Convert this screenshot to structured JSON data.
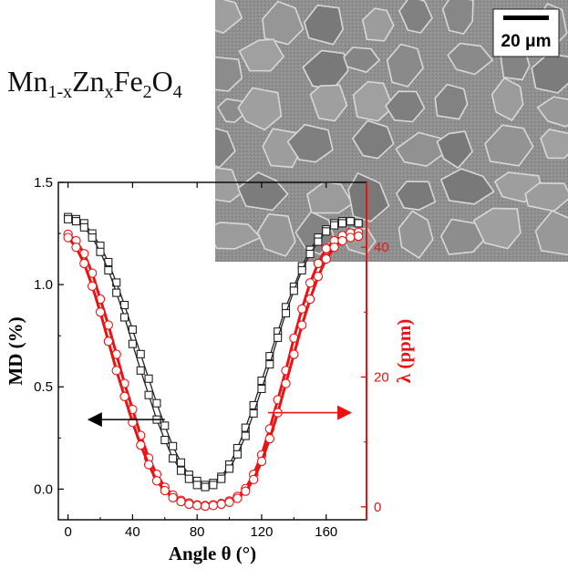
{
  "figure": {
    "formula": {
      "base1": "Mn",
      "sub1": "1-x",
      "base2": "Zn",
      "sub2": "x",
      "base3": "Fe",
      "sub3": "2",
      "base4": "O",
      "sub4": "4"
    },
    "micrograph": {
      "scale_bar_label": "20 μm"
    }
  },
  "chart_data": {
    "type": "scatter",
    "title": "",
    "xlabel": "Angle θ (°)",
    "ylabel": "MD (%)",
    "y2label": "λ (ppm)",
    "xlim": [
      -6,
      185
    ],
    "ylim": [
      -0.15,
      1.5
    ],
    "y2lim": [
      -2,
      50
    ],
    "xticks": [
      0,
      40,
      80,
      120,
      160
    ],
    "yticks": [
      0.0,
      0.5,
      1.0,
      1.5
    ],
    "yticks_labels": [
      "0.0",
      "0.5",
      "1.0",
      "1.5"
    ],
    "y2ticks": [
      0,
      20,
      40
    ],
    "colors": {
      "md": "#222222",
      "lambda": "#ee1111"
    },
    "series": [
      {
        "axis": "left",
        "marker": "square",
        "color": "#222222",
        "x": [
          0,
          5,
          10,
          15,
          20,
          25,
          30,
          35,
          40,
          45,
          50,
          55,
          60,
          65,
          70,
          75,
          80,
          85,
          90,
          95,
          100,
          105,
          110,
          115,
          120,
          125,
          130,
          135,
          140,
          145,
          150,
          155,
          160,
          165,
          170,
          175,
          180
        ],
        "y": [
          1.33,
          1.32,
          1.3,
          1.25,
          1.19,
          1.11,
          1.01,
          0.9,
          0.78,
          0.66,
          0.54,
          0.42,
          0.31,
          0.21,
          0.13,
          0.07,
          0.04,
          0.02,
          0.03,
          0.06,
          0.12,
          0.2,
          0.3,
          0.41,
          0.53,
          0.65,
          0.77,
          0.89,
          0.99,
          1.09,
          1.17,
          1.23,
          1.27,
          1.3,
          1.31,
          1.31,
          1.3
        ]
      },
      {
        "axis": "left",
        "marker": "square",
        "color": "#222222",
        "x": [
          0,
          5,
          10,
          15,
          20,
          25,
          30,
          35,
          40,
          45,
          50,
          55,
          60,
          65,
          70,
          75,
          80,
          85,
          90,
          95,
          100,
          105,
          110,
          115,
          120,
          125,
          130,
          135,
          140,
          145,
          150,
          155,
          160,
          165,
          170,
          175,
          180
        ],
        "y": [
          1.32,
          1.31,
          1.28,
          1.23,
          1.16,
          1.07,
          0.96,
          0.84,
          0.71,
          0.58,
          0.46,
          0.34,
          0.24,
          0.15,
          0.09,
          0.05,
          0.02,
          0.01,
          0.02,
          0.05,
          0.1,
          0.17,
          0.26,
          0.37,
          0.49,
          0.61,
          0.74,
          0.86,
          0.97,
          1.07,
          1.15,
          1.21,
          1.26,
          1.29,
          1.3,
          1.31,
          1.3
        ]
      },
      {
        "axis": "right",
        "marker": "circle",
        "color": "#ee1111",
        "x": [
          0,
          5,
          10,
          15,
          20,
          25,
          30,
          35,
          40,
          45,
          50,
          55,
          60,
          65,
          70,
          75,
          80,
          85,
          90,
          95,
          100,
          105,
          110,
          115,
          120,
          125,
          130,
          135,
          140,
          145,
          150,
          155,
          160,
          165,
          170,
          175,
          180
        ],
        "y": [
          42,
          41,
          39,
          36,
          32,
          28,
          23.5,
          19,
          15,
          11,
          7.5,
          5,
          3,
          1.8,
          1.0,
          0.6,
          0.3,
          0.2,
          0.3,
          0.5,
          0.9,
          1.6,
          2.8,
          5,
          8,
          12,
          16.5,
          21,
          26,
          30.5,
          34.5,
          37.5,
          39.8,
          41,
          41.8,
          42.2,
          42.3
        ]
      },
      {
        "axis": "right",
        "marker": "circle",
        "color": "#ee1111",
        "x": [
          0,
          5,
          10,
          15,
          20,
          25,
          30,
          35,
          40,
          45,
          50,
          55,
          60,
          65,
          70,
          75,
          80,
          85,
          90,
          95,
          100,
          105,
          110,
          115,
          120,
          125,
          130,
          135,
          140,
          145,
          150,
          155,
          160,
          165,
          170,
          175,
          180
        ],
        "y": [
          41.5,
          40,
          37.5,
          34,
          30,
          25.5,
          21,
          17,
          13,
          9.5,
          6.5,
          4,
          2.5,
          1.4,
          0.8,
          0.4,
          0.2,
          0.1,
          0.2,
          0.4,
          0.7,
          1.3,
          2.4,
          4.2,
          7,
          10.5,
          14.5,
          19,
          23.5,
          28,
          32,
          35.5,
          38.2,
          40,
          41,
          41.5,
          41.7
        ]
      }
    ],
    "annotations": [
      {
        "type": "arrow",
        "direction": "left",
        "color": "#000000",
        "from": [
          60,
          0.34
        ],
        "to": [
          12,
          0.34
        ]
      },
      {
        "type": "arrow",
        "direction": "right",
        "color": "#ee1111",
        "from": [
          124,
          14.5
        ],
        "to": [
          176,
          14.5
        ]
      }
    ]
  }
}
